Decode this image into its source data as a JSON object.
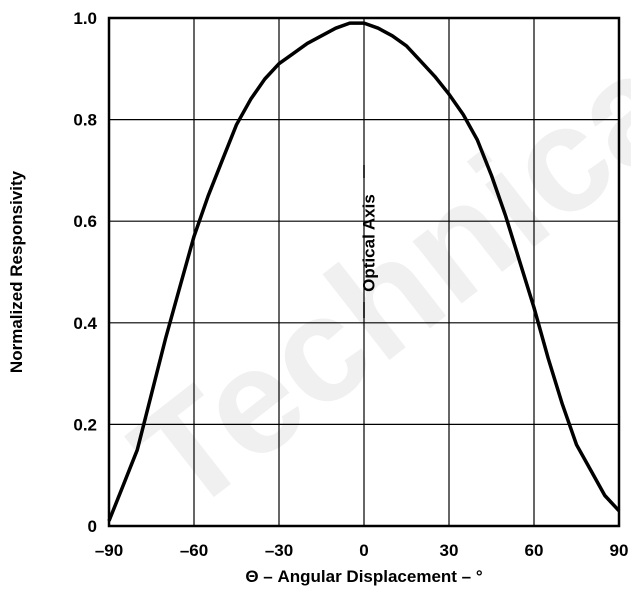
{
  "watermark": "Technical",
  "chart_data": {
    "type": "line",
    "title": "",
    "xlabel": "Θ – Angular Displacement – °",
    "ylabel": "Normalized Responsivity",
    "xlim": [
      -90,
      90
    ],
    "ylim": [
      0,
      1.0
    ],
    "x_ticks": [
      "–90",
      "–60",
      "–30",
      "0",
      "30",
      "60",
      "90"
    ],
    "y_ticks": [
      "0",
      "0.2",
      "0.4",
      "0.6",
      "0.8",
      "1.0"
    ],
    "grid": true,
    "legend": "none",
    "annotation": "Optical Axis",
    "series": [
      {
        "x": [
          -90,
          -85,
          -80,
          -75,
          -70,
          -65,
          -60,
          -55,
          -50,
          -45,
          -40,
          -35,
          -30,
          -25,
          -20,
          -15,
          -10,
          -5,
          0,
          5,
          10,
          15,
          20,
          25,
          30,
          35,
          40,
          45,
          50,
          55,
          60,
          65,
          70,
          75,
          80,
          85,
          90
        ],
        "values": [
          0.01,
          0.08,
          0.15,
          0.26,
          0.37,
          0.47,
          0.57,
          0.65,
          0.72,
          0.79,
          0.84,
          0.88,
          0.91,
          0.93,
          0.95,
          0.965,
          0.98,
          0.99,
          0.99,
          0.98,
          0.965,
          0.945,
          0.915,
          0.885,
          0.85,
          0.81,
          0.76,
          0.69,
          0.61,
          0.52,
          0.43,
          0.33,
          0.24,
          0.16,
          0.11,
          0.06,
          0.03
        ]
      }
    ]
  }
}
